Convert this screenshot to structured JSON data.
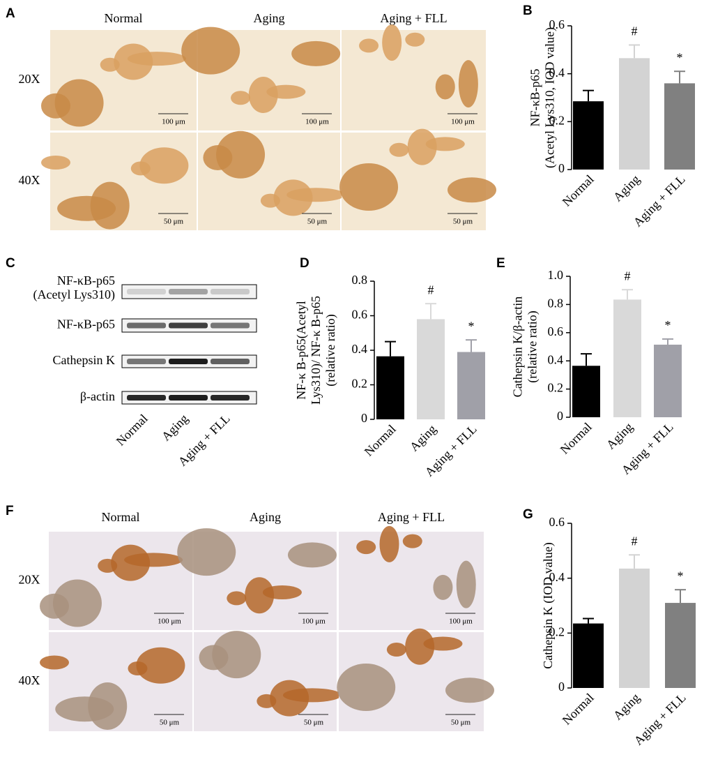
{
  "panel_labels": [
    "A",
    "B",
    "C",
    "D",
    "E",
    "F",
    "G"
  ],
  "panel_a": {
    "columns": [
      "Normal",
      "Aging",
      "Aging + FLL"
    ],
    "rows": [
      "20X",
      "40X"
    ],
    "scale_bars": [
      "100 μm",
      "50 μm"
    ]
  },
  "panel_c": {
    "bands": [
      [
        "NF-κB-p65",
        "(Acetyl Lys310)"
      ],
      [
        "NF-κB-p65"
      ],
      [
        "Cathepsin K"
      ],
      [
        "β-actin"
      ]
    ],
    "lanes": [
      "Normal",
      "Aging",
      "Aging + FLL"
    ]
  },
  "panel_f": {
    "columns": [
      "Normal",
      "Aging",
      "Aging + FLL"
    ],
    "rows": [
      "20X",
      "40X"
    ],
    "scale_bars": [
      "100 μm",
      "50 μm"
    ]
  },
  "chart_data": [
    {
      "type": "bar",
      "ylabel": [
        "NF-κB-p65",
        "(Acetyl Lys310, IOD value)"
      ],
      "categories": [
        "Normal",
        "Aging",
        "Aging + FLL"
      ],
      "values": [
        0.285,
        0.465,
        0.36
      ],
      "errors": [
        0.045,
        0.055,
        0.05
      ],
      "annotations": [
        null,
        "#",
        "*"
      ],
      "colors": [
        "#000000",
        "#d3d3d3",
        "#808080"
      ],
      "ylim": [
        0,
        0.6
      ],
      "yticks": [
        0,
        0.2,
        0.4,
        0.6
      ]
    },
    {
      "type": "bar",
      "ylabel": [
        "NF-κ B-p65(Acetyl",
        "Lys310)/ NF-κ B-p65",
        "(relative ratio)"
      ],
      "categories": [
        "Normal",
        "Aging",
        "Aging + FLL"
      ],
      "values": [
        0.365,
        0.58,
        0.39
      ],
      "errors": [
        0.085,
        0.09,
        0.07
      ],
      "annotations": [
        null,
        "#",
        "*"
      ],
      "colors": [
        "#000000",
        "#d9d9d9",
        "#a0a0a8"
      ],
      "ylim": [
        0,
        0.8
      ],
      "yticks": [
        0,
        0.2,
        0.4,
        0.6,
        0.8
      ]
    },
    {
      "type": "bar",
      "ylabel": [
        "Cathepsin K/β-actin",
        "(relative ratio)"
      ],
      "categories": [
        "Normal",
        "Aging",
        "Aging + FLL"
      ],
      "values": [
        0.365,
        0.835,
        0.515
      ],
      "errors": [
        0.085,
        0.07,
        0.04
      ],
      "annotations": [
        null,
        "#",
        "*"
      ],
      "colors": [
        "#000000",
        "#d9d9d9",
        "#a0a0a8"
      ],
      "ylim": [
        0,
        1
      ],
      "yticks": [
        0,
        0.2,
        0.4,
        0.6,
        0.8,
        {
          "value": 1,
          "label": "1.0"
        }
      ]
    },
    {
      "type": "bar",
      "ylabel": [
        "Cathepsin K (IOD value)"
      ],
      "categories": [
        "Normal",
        "Aging",
        "Aging + FLL"
      ],
      "values": [
        0.235,
        0.435,
        0.31
      ],
      "errors": [
        0.018,
        0.05,
        0.048
      ],
      "annotations": [
        null,
        "#",
        "*"
      ],
      "colors": [
        "#000000",
        "#d3d3d3",
        "#808080"
      ],
      "ylim": [
        0,
        0.6
      ],
      "yticks": [
        0,
        0.2,
        0.4,
        0.6
      ]
    }
  ]
}
